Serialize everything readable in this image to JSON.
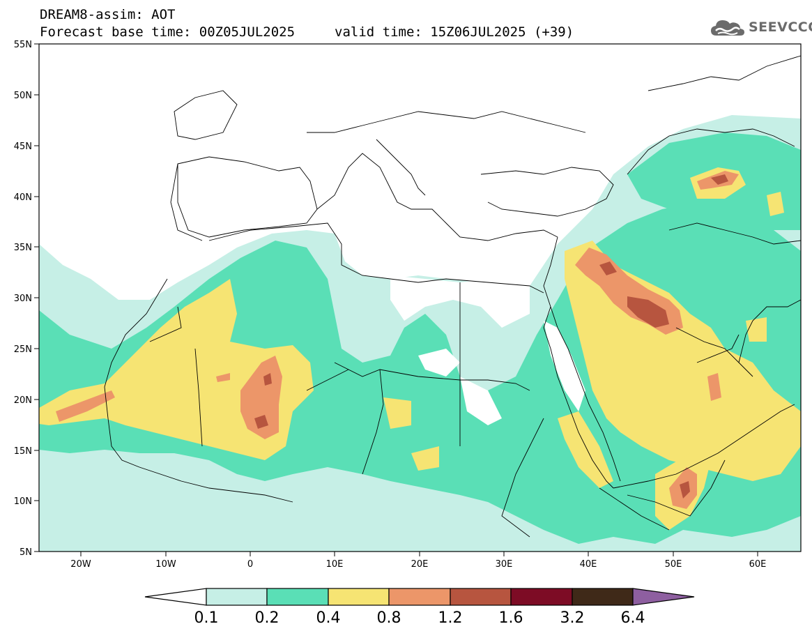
{
  "header": {
    "title": "DREAM8-assim: AOT",
    "base_time": "Forecast base time: 00Z05JUL2025",
    "valid_time": "valid time: 15Z06JUL2025 (+39)"
  },
  "logo": {
    "text": "SEEVCCC",
    "icon": "cloud-icon"
  },
  "axes": {
    "lon_labels": [
      "20W",
      "10W",
      "0",
      "10E",
      "20E",
      "30E",
      "40E",
      "50E",
      "60E"
    ],
    "lat_labels": [
      "55N",
      "50N",
      "45N",
      "40N",
      "35N",
      "30N",
      "25N",
      "20N",
      "15N",
      "10N",
      "5N"
    ],
    "lon_range": [
      -25,
      65
    ],
    "lat_range": [
      5,
      55
    ]
  },
  "colorbar": {
    "labels": [
      "0.1",
      "0.2",
      "0.4",
      "0.8",
      "1.2",
      "1.6",
      "3.2",
      "6.4"
    ],
    "colors": [
      "#ffffff",
      "#c6efe6",
      "#5adfb6",
      "#f6e473",
      "#ec9669",
      "#b7553f",
      "#7d0c25",
      "#3f2918",
      "#8e5fa0"
    ]
  },
  "colors": {
    "c1": "#c6efe6",
    "c2": "#5adfb6",
    "c3": "#f6e473",
    "c4": "#ec9669",
    "c5": "#b7553f"
  }
}
